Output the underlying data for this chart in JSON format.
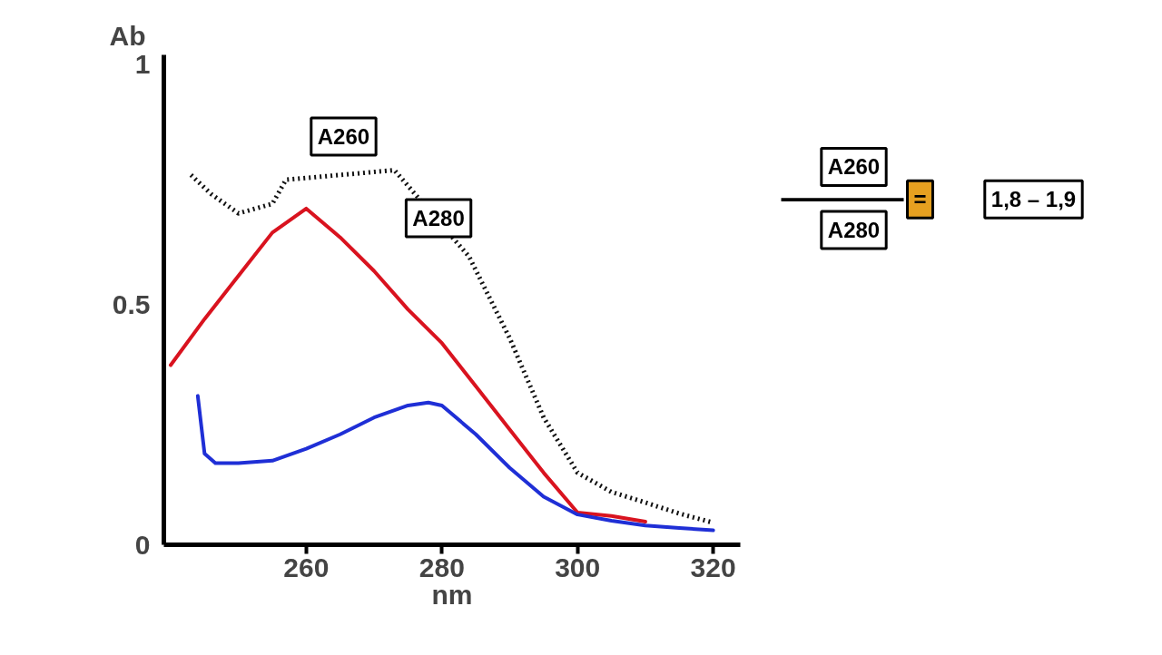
{
  "chart_data": {
    "type": "line",
    "xlabel": "nm",
    "ylabel": "Ab",
    "xlim": [
      239,
      324
    ],
    "ylim": [
      0,
      1.02
    ],
    "xticks": [
      260,
      280,
      300,
      320
    ],
    "yticks": [
      0,
      0.5,
      1
    ],
    "grid": false,
    "marker": "none",
    "series": [
      {
        "color": "#d9131f",
        "line_style": "solid",
        "x": [
          240,
          245,
          250,
          255,
          260,
          265,
          270,
          275,
          280,
          285,
          290,
          295,
          300,
          305,
          310
        ],
        "values": [
          0.374,
          0.47,
          0.56,
          0.65,
          0.7,
          0.64,
          0.57,
          0.49,
          0.42,
          0.33,
          0.24,
          0.15,
          0.067,
          0.06,
          0.048
        ]
      },
      {
        "color": "#1f2fd6",
        "line_style": "solid",
        "x": [
          244,
          244.5,
          245,
          246.6,
          250,
          255,
          260,
          265,
          270,
          275,
          278,
          280,
          285,
          290,
          295,
          300,
          305,
          310,
          315,
          320
        ],
        "values": [
          0.31,
          0.25,
          0.19,
          0.17,
          0.17,
          0.175,
          0.2,
          0.23,
          0.265,
          0.29,
          0.296,
          0.29,
          0.23,
          0.16,
          0.1,
          0.063,
          0.05,
          0.04,
          0.035,
          0.03
        ]
      },
      {
        "color": "#111111",
        "line_style": "dotted",
        "x": [
          243,
          246,
          250,
          255,
          257,
          273,
          284,
          290,
          295,
          300,
          305,
          310,
          315,
          320
        ],
        "values": [
          0.77,
          0.73,
          0.69,
          0.71,
          0.76,
          0.78,
          0.6,
          0.43,
          0.265,
          0.15,
          0.11,
          0.088,
          0.065,
          0.046
        ]
      }
    ],
    "annotations": [
      "A260",
      "A280",
      "A260",
      "A280",
      "=",
      "1,8 – 1,9"
    ]
  }
}
